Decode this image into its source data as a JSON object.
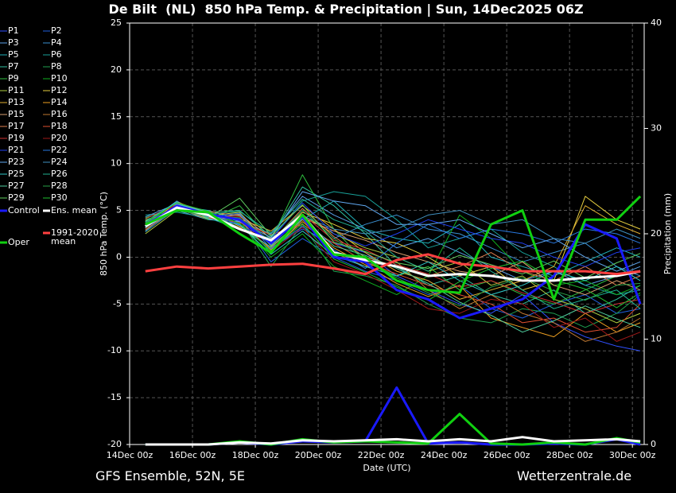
{
  "chart_data": {
    "type": "line",
    "title": "De Bilt  (NL)  850 hPa Temp. & Precipitation | Sun, 14Dec2025 06Z",
    "xlabel": "Date (UTC)",
    "ylabel": "850 hPa Temp. (°C)",
    "y2label": "Precipitation (mm)",
    "footer_left": "GFS Ensemble, 52N, 5E",
    "footer_right": "Wetterzentrale.de",
    "xlim": [
      "14Dec 00z",
      "30Dec 09z"
    ],
    "xticks": [
      "14Dec 00z",
      "16Dec 00z",
      "18Dec 00z",
      "20Dec 00z",
      "22Dec 00z",
      "24Dec 00z",
      "26Dec 00z",
      "28Dec 00z",
      "30Dec 00z"
    ],
    "ylim": [
      -20,
      25
    ],
    "yticks": [
      -20,
      -15,
      -10,
      -5,
      0,
      5,
      10,
      15,
      20,
      25
    ],
    "y2lim": [
      0,
      40
    ],
    "y2ticks": [
      0,
      10,
      20,
      30,
      40
    ],
    "grid": true,
    "x": [
      "14Dec 12z",
      "15Dec 12z",
      "16Dec 12z",
      "17Dec 12z",
      "18Dec 12z",
      "19Dec 12z",
      "20Dec 12z",
      "21Dec 12z",
      "22Dec 12z",
      "23Dec 12z",
      "24Dec 12z",
      "25Dec 12z",
      "26Dec 12z",
      "27Dec 12z",
      "28Dec 12z",
      "29Dec 12z",
      "30Dec 06z"
    ],
    "series": [
      {
        "name": "P1",
        "color": "#3050ff",
        "values": [
          3.0,
          5.2,
          4.8,
          3.5,
          1.0,
          3.0,
          1.5,
          0.5,
          -2.0,
          -3.5,
          -5.0,
          -6.0,
          -4.0,
          -7.0,
          -8.5,
          -9.5,
          -10.0
        ]
      },
      {
        "name": "P2",
        "color": "#2060e0",
        "values": [
          3.8,
          5.8,
          4.5,
          4.2,
          -0.5,
          2.0,
          0.0,
          -1.5,
          -2.5,
          -4.0,
          -3.0,
          -5.5,
          -6.5,
          -5.0,
          -4.0,
          -6.0,
          -5.5
        ]
      },
      {
        "name": "P3",
        "color": "#5aa0e8",
        "values": [
          4.0,
          5.0,
          4.0,
          3.8,
          2.5,
          6.5,
          4.5,
          3.0,
          1.0,
          2.0,
          0.5,
          -1.0,
          -2.5,
          -1.5,
          -3.0,
          -2.0,
          -1.0
        ]
      },
      {
        "name": "P4",
        "color": "#3a8fd0",
        "values": [
          3.5,
          6.0,
          4.2,
          4.5,
          1.5,
          5.0,
          2.0,
          3.5,
          4.5,
          3.0,
          2.5,
          1.0,
          -0.5,
          0.5,
          1.5,
          -1.0,
          -2.0
        ]
      },
      {
        "name": "P5",
        "color": "#20b0b8",
        "values": [
          2.8,
          5.5,
          5.0,
          4.0,
          0.5,
          4.0,
          6.0,
          3.0,
          2.0,
          1.5,
          3.5,
          0.0,
          -1.0,
          -2.0,
          -0.5,
          1.0,
          0.0
        ]
      },
      {
        "name": "P6",
        "color": "#18a098",
        "values": [
          4.5,
          4.8,
          4.2,
          3.0,
          2.0,
          6.0,
          7.0,
          6.5,
          4.0,
          1.0,
          2.0,
          3.0,
          0.5,
          -1.0,
          -3.0,
          -4.0,
          -3.5
        ]
      },
      {
        "name": "P7",
        "color": "#30c0a0",
        "values": [
          3.2,
          5.6,
          4.8,
          5.0,
          2.2,
          7.5,
          5.5,
          2.5,
          -1.0,
          -3.0,
          -2.0,
          -4.0,
          -5.0,
          -3.5,
          -6.0,
          -4.5,
          -3.0
        ]
      },
      {
        "name": "P8",
        "color": "#20a050",
        "values": [
          3.0,
          5.0,
          4.5,
          4.0,
          -1.0,
          3.5,
          -1.5,
          -2.0,
          -3.0,
          -5.0,
          -6.5,
          -7.0,
          -5.5,
          -6.0,
          -7.5,
          -6.0,
          -4.0
        ]
      },
      {
        "name": "P9",
        "color": "#30c040",
        "values": [
          4.2,
          5.3,
          4.0,
          5.5,
          1.8,
          8.8,
          3.0,
          -0.5,
          -2.0,
          -1.0,
          -3.5,
          -2.5,
          -4.0,
          -5.0,
          -3.5,
          -2.0,
          -1.5
        ]
      },
      {
        "name": "P10",
        "color": "#10b020",
        "values": [
          3.6,
          5.7,
          4.6,
          3.6,
          0.0,
          2.5,
          -1.0,
          -2.5,
          -4.0,
          -2.0,
          4.5,
          2.0,
          -1.5,
          -3.0,
          -2.5,
          -4.0,
          -3.0
        ]
      },
      {
        "name": "P11",
        "color": "#b0d040",
        "values": [
          2.5,
          5.0,
          4.4,
          4.8,
          1.2,
          4.5,
          2.5,
          1.0,
          0.0,
          -1.5,
          -0.5,
          -3.0,
          -2.0,
          -4.5,
          -5.5,
          -7.0,
          -6.0
        ]
      },
      {
        "name": "P12",
        "color": "#e8d040",
        "values": [
          3.4,
          5.4,
          4.9,
          3.3,
          1.5,
          4.8,
          3.5,
          2.0,
          1.5,
          0.0,
          -2.0,
          -1.0,
          -3.5,
          -2.5,
          6.5,
          4.0,
          3.0
        ]
      },
      {
        "name": "P13",
        "color": "#e0b030",
        "values": [
          3.9,
          5.1,
          4.3,
          4.1,
          2.8,
          5.5,
          3.0,
          0.5,
          -1.5,
          -2.5,
          -4.5,
          -3.5,
          -2.5,
          -1.0,
          5.5,
          3.5,
          2.5
        ]
      },
      {
        "name": "P14",
        "color": "#f0a020",
        "values": [
          3.1,
          5.9,
          4.7,
          3.9,
          0.8,
          3.8,
          1.0,
          -0.8,
          -2.8,
          -4.2,
          -3.0,
          -6.5,
          -7.5,
          -8.5,
          -6.0,
          -8.0,
          -7.0
        ]
      },
      {
        "name": "P15",
        "color": "#d8a070",
        "values": [
          3.7,
          5.2,
          4.1,
          4.6,
          2.0,
          4.2,
          2.8,
          1.8,
          0.5,
          -0.5,
          -1.5,
          -2.0,
          -0.5,
          -3.0,
          -4.0,
          -2.5,
          -3.5
        ]
      },
      {
        "name": "P16",
        "color": "#c07830",
        "values": [
          3.3,
          5.5,
          4.5,
          3.2,
          1.0,
          4.0,
          0.5,
          -1.0,
          -0.5,
          -3.5,
          -5.5,
          -4.0,
          -6.0,
          -7.0,
          -9.0,
          -8.0,
          -6.5
        ]
      },
      {
        "name": "P17",
        "color": "#e08050",
        "values": [
          2.9,
          5.3,
          4.9,
          4.4,
          1.6,
          5.2,
          2.2,
          0.0,
          -1.0,
          -2.0,
          -1.0,
          0.5,
          -1.5,
          -2.5,
          -1.0,
          -3.0,
          -2.0
        ]
      },
      {
        "name": "P18",
        "color": "#e05030",
        "values": [
          4.1,
          5.6,
          4.2,
          3.7,
          2.4,
          3.5,
          1.5,
          -0.5,
          -1.8,
          -3.0,
          -4.0,
          -5.0,
          -7.0,
          -6.5,
          -8.0,
          -7.5,
          -5.0
        ]
      },
      {
        "name": "P19",
        "color": "#d03030",
        "values": [
          3.5,
          5.0,
          4.6,
          4.0,
          1.4,
          4.6,
          1.8,
          0.8,
          -0.8,
          -1.8,
          -3.2,
          -2.5,
          -3.8,
          -4.8,
          -6.0,
          -5.0,
          -4.5
        ]
      },
      {
        "name": "P20",
        "color": "#a01818",
        "values": [
          3.0,
          5.8,
          4.4,
          4.3,
          0.6,
          3.2,
          -0.5,
          -1.8,
          -3.5,
          -5.5,
          -6.0,
          -4.5,
          -5.0,
          -7.5,
          -6.5,
          -9.0,
          -8.0
        ]
      },
      {
        "name": "P21",
        "color": "#2040f0",
        "values": [
          3.6,
          5.4,
          4.7,
          3.4,
          1.9,
          5.8,
          2.5,
          1.2,
          2.5,
          4.0,
          3.0,
          2.0,
          1.5,
          0.0,
          -1.0,
          0.5,
          1.0
        ]
      },
      {
        "name": "P22",
        "color": "#2878e0",
        "values": [
          3.2,
          5.1,
          4.3,
          4.7,
          0.9,
          3.3,
          0.8,
          -1.2,
          1.5,
          3.5,
          2.0,
          3.0,
          2.5,
          1.5,
          3.0,
          2.5,
          1.5
        ]
      },
      {
        "name": "P23",
        "color": "#60a8f0",
        "values": [
          4.3,
          5.7,
          4.8,
          3.8,
          2.1,
          7.0,
          6.0,
          5.5,
          3.5,
          3.5,
          4.0,
          2.5,
          1.0,
          2.0,
          0.0,
          -1.5,
          -0.5
        ]
      },
      {
        "name": "P24",
        "color": "#4090c0",
        "values": [
          2.7,
          5.2,
          4.5,
          4.1,
          1.3,
          4.4,
          3.0,
          2.5,
          3.0,
          4.5,
          5.0,
          3.5,
          4.0,
          2.0,
          1.5,
          3.0,
          2.0
        ]
      },
      {
        "name": "P25",
        "color": "#30c8c8",
        "values": [
          3.8,
          5.9,
          4.1,
          3.5,
          0.3,
          2.8,
          0.2,
          -1.0,
          -2.0,
          -0.5,
          -2.5,
          -4.0,
          -3.0,
          -1.5,
          -2.5,
          -1.0,
          -2.5
        ]
      },
      {
        "name": "P26",
        "color": "#20b090",
        "values": [
          3.4,
          5.3,
          4.6,
          4.9,
          2.6,
          6.2,
          4.0,
          2.8,
          0.0,
          -1.5,
          1.0,
          -1.5,
          -3.5,
          -5.5,
          -4.5,
          -3.5,
          -5.5
        ]
      },
      {
        "name": "P27",
        "color": "#50d0a0",
        "values": [
          3.1,
          5.6,
          4.8,
          3.1,
          1.1,
          4.1,
          1.2,
          0.2,
          -1.2,
          -2.8,
          -4.8,
          -6.2,
          -8.0,
          -6.8,
          -5.2,
          -6.6,
          -7.5
        ]
      },
      {
        "name": "P28",
        "color": "#28a048",
        "values": [
          4.0,
          5.0,
          4.4,
          4.2,
          1.7,
          5.0,
          2.0,
          -0.2,
          -2.2,
          -3.8,
          -5.2,
          -3.2,
          -2.2,
          -3.6,
          -4.6,
          -3.0,
          -2.8
        ]
      },
      {
        "name": "P29",
        "color": "#60d060",
        "values": [
          3.3,
          5.5,
          4.2,
          6.3,
          2.3,
          5.6,
          1.6,
          0.6,
          -0.6,
          -1.2,
          0.2,
          -0.8,
          -1.8,
          -0.4,
          -2.2,
          -0.6,
          0.4
        ]
      },
      {
        "name": "P30",
        "color": "#20c030",
        "values": [
          3.7,
          5.8,
          4.9,
          3.6,
          0.7,
          3.6,
          -0.2,
          -1.6,
          -3.2,
          -4.6,
          -2.6,
          -1.2,
          -0.4,
          -2.4,
          -3.4,
          -5.4,
          -3.8
        ]
      },
      {
        "name": "Control",
        "color": "#1a1aff",
        "width": 3,
        "values": [
          3.3,
          5.5,
          4.6,
          4.0,
          1.5,
          4.3,
          0.0,
          -0.5,
          -3.5,
          -4.5,
          -6.5,
          -5.5,
          -4.5,
          -2.0,
          3.5,
          2.0,
          -5.0
        ]
      },
      {
        "name": "Ens. mean",
        "color": "#ffffff",
        "width": 3,
        "values": [
          3.3,
          5.3,
          4.5,
          3.0,
          1.8,
          4.5,
          0.5,
          -0.3,
          -1.0,
          -2.0,
          -1.8,
          -2.0,
          -2.5,
          -2.5,
          -2.2,
          -2.0,
          -1.5
        ]
      },
      {
        "name": "1991-2020 mean",
        "color": "#ff4040",
        "width": 3,
        "values": [
          -1.5,
          -1.0,
          -1.2,
          -1.0,
          -0.8,
          -0.7,
          -1.2,
          -1.8,
          -0.3,
          0.3,
          -0.7,
          -1.0,
          -1.5,
          -1.5,
          -1.5,
          -1.8,
          -1.5
        ]
      },
      {
        "name": "Oper",
        "color": "#10d010",
        "width": 3,
        "values": [
          3.5,
          5.0,
          4.8,
          2.5,
          0.5,
          4.5,
          0.3,
          0.0,
          -2.5,
          -3.5,
          -3.8,
          3.5,
          5.0,
          -4.5,
          4.0,
          4.0,
          6.5
        ]
      },
      {
        "name": "Control",
        "color": "#1a1aff",
        "width": 3,
        "axis": "y2",
        "values": [
          0,
          0,
          0,
          0.2,
          0,
          0.3,
          0.2,
          0.3,
          5.4,
          0.1,
          0.2,
          0,
          0,
          0.1,
          0,
          0.5,
          0
        ]
      },
      {
        "name": "Oper",
        "color": "#10d010",
        "width": 3,
        "axis": "y2",
        "values": [
          0,
          0,
          0,
          0.3,
          0,
          0.5,
          0.2,
          0.3,
          0.2,
          0.1,
          2.9,
          0.1,
          0,
          0.2,
          0,
          0.6,
          0.2
        ]
      },
      {
        "name": "Ens. mean",
        "color": "#ffffff",
        "width": 3,
        "axis": "y2",
        "values": [
          0,
          0,
          0,
          0.2,
          0.1,
          0.4,
          0.3,
          0.4,
          0.5,
          0.3,
          0.5,
          0.3,
          0.7,
          0.3,
          0.4,
          0.5,
          0.3
        ]
      }
    ]
  }
}
